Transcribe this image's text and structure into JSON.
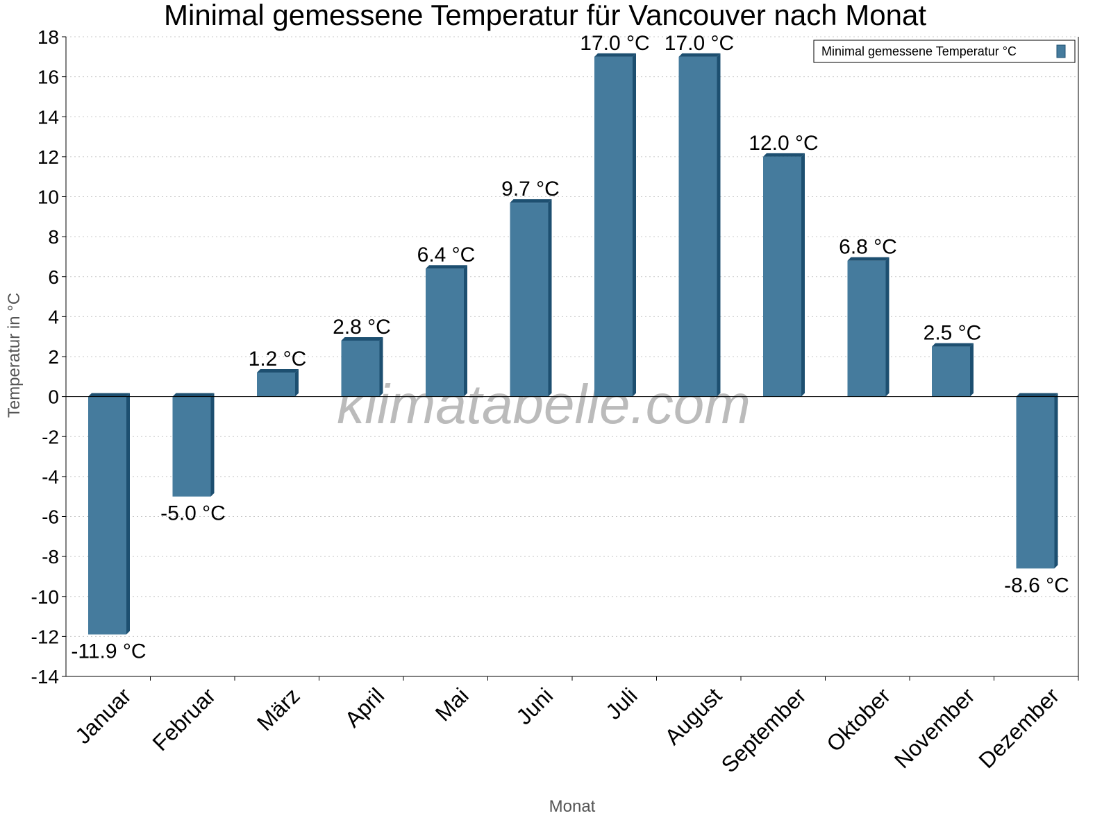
{
  "chart_data": {
    "type": "bar",
    "title": "Minimal gemessene Temperatur für Vancouver nach Monat",
    "xlabel": "Monat",
    "ylabel": "Temperatur in °C",
    "ylim": [
      -14,
      18
    ],
    "yticks": [
      -14,
      -12,
      -10,
      -8,
      -6,
      -4,
      -2,
      0,
      2,
      4,
      6,
      8,
      10,
      12,
      14,
      16,
      18
    ],
    "grid": true,
    "legend_position": "top-right",
    "categories": [
      "Januar",
      "Februar",
      "März",
      "April",
      "Mai",
      "Juni",
      "Juli",
      "August",
      "September",
      "Oktober",
      "November",
      "Dezember"
    ],
    "series": [
      {
        "name": "Minimal gemessene Temperatur °C",
        "color": "#457b9d",
        "side_color": "#1d4f70",
        "values": [
          -11.9,
          -5.0,
          1.2,
          2.8,
          6.4,
          9.7,
          17.0,
          17.0,
          12.0,
          6.8,
          2.5,
          -8.6
        ]
      }
    ],
    "value_labels": [
      "-11.9 °C",
      "-5.0 °C",
      "1.2 °C",
      "2.8 °C",
      "6.4 °C",
      "9.7 °C",
      "17.0 °C",
      "17.0 °C",
      "12.0 °C",
      "6.8 °C",
      "2.5 °C",
      "-8.6 °C"
    ],
    "watermark": "klimatabelle.com"
  }
}
